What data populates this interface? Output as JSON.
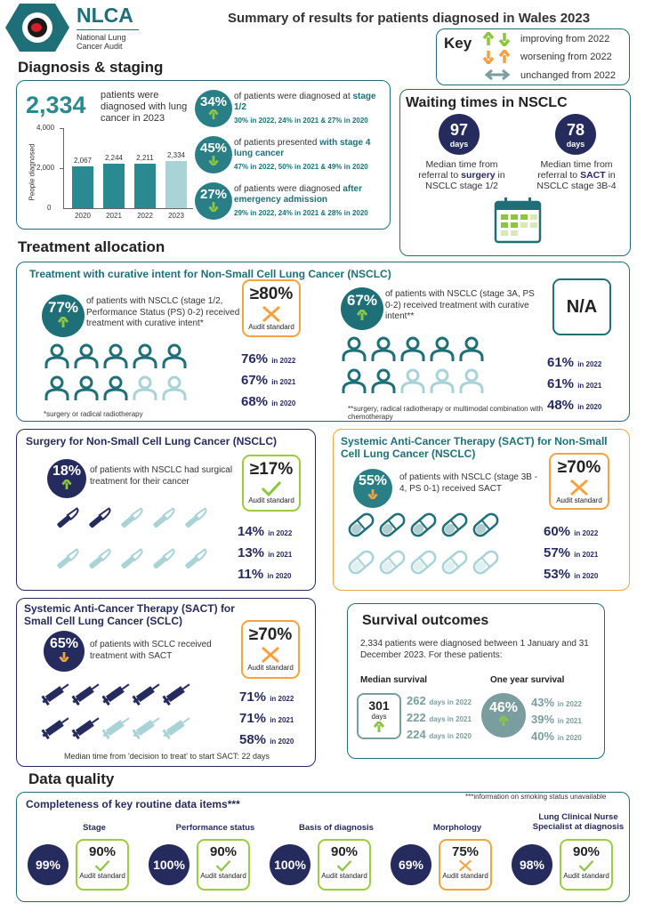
{
  "header": {
    "logo_text": "NLCA",
    "logo_sub1": "National Lung",
    "logo_sub2": "Cancer Audit",
    "title": "Summary of results for patients diagnosed in Wales 2023"
  },
  "key": {
    "title": "Key",
    "improving": "improving from 2022",
    "worsening": "worsening from 2022",
    "unchanged": "unchanged from 2022"
  },
  "diagnosis": {
    "heading": "Diagnosis & staging",
    "count": "2,334",
    "count_text": "patients were diagnosed with lung cancer in 2023",
    "chart_ylabel": "People diagnosed",
    "stats": [
      {
        "pct": "34%",
        "text_a": "of patients were diagnosed at ",
        "text_b": "stage 1/2",
        "hist": "30% in 2022, 24% in 2021 & 27% in 2020"
      },
      {
        "pct": "45%",
        "text_a": "of patients presented ",
        "text_b": "with stage 4 lung cancer",
        "hist": "47% in 2022, 50% in 2021 & 49% in 2020"
      },
      {
        "pct": "27%",
        "text_a": "of patients were diagnosed ",
        "text_b": "after emergency admission",
        "hist": "29% in 2022, 24% in 2021 & 28% in 2020"
      }
    ]
  },
  "chart_data": {
    "type": "bar",
    "categories": [
      "2020",
      "2021",
      "2022",
      "2023"
    ],
    "values": [
      2067,
      2244,
      2211,
      2334
    ],
    "value_labels": [
      "2,067",
      "2,244",
      "2,211",
      "2,334"
    ],
    "ylabel": "People diagnosed",
    "yticks": [
      "4,000",
      "2,000",
      "0"
    ],
    "ylim": [
      0,
      4000
    ]
  },
  "waiting": {
    "heading": "Waiting times in NSCLC",
    "surgery_days": "97",
    "sact_days": "78",
    "days_label": "days",
    "surgery_text_a": "Median time from referral to ",
    "surgery_bold": "surgery",
    "surgery_text_b": " in NSCLC stage 1/2",
    "sact_text_a": "Median time from referral to ",
    "sact_bold": "SACT",
    "sact_text_b": " in NSCLC stage 3B-4"
  },
  "treatment": {
    "heading": "Treatment allocation",
    "curative_title": "Treatment with curative intent for Non-Small Cell Lung Cancer (NSCLC)",
    "left": {
      "pct": "77%",
      "text": "of patients with NSCLC (stage 1/2, Performance Status (PS) 0-2) received treatment with curative intent*",
      "standard": "≥80%",
      "standard_label": "Audit standard",
      "hist": [
        [
          "76%",
          "in 2022"
        ],
        [
          "67%",
          "in 2021"
        ],
        [
          "68%",
          "in 2020"
        ]
      ],
      "footnote": "*surgery or radical radiotherapy"
    },
    "right": {
      "pct": "67%",
      "text": "of patients with NSCLC (stage 3A, PS 0-2) received treatment with curative intent**",
      "standard": "N/A",
      "hist": [
        [
          "61%",
          "in 2022"
        ],
        [
          "61%",
          "in 2021"
        ],
        [
          "48%",
          "in 2020"
        ]
      ],
      "footnote": "**surgery, radical radiotherapy or multimodal combination with chemotherapy"
    }
  },
  "surgery": {
    "title": "Surgery for Non-Small Cell Lung Cancer (NSCLC)",
    "pct": "18%",
    "text": "of patients with NSCLC had surgical treatment for their cancer",
    "standard": "≥17%",
    "standard_label": "Audit standard",
    "hist": [
      [
        "14%",
        "in 2022"
      ],
      [
        "13%",
        "in 2021"
      ],
      [
        "11%",
        "in 2020"
      ]
    ]
  },
  "sact_nsclc": {
    "title": "Systemic Anti-Cancer Therapy (SACT) for Non-Small Cell Lung Cancer (NSCLC)",
    "pct": "55%",
    "text": "of patients with NSCLC (stage 3B - 4, PS 0-1) received  SACT",
    "standard": "≥70%",
    "standard_label": "Audit standard",
    "hist": [
      [
        "60%",
        "in 2022"
      ],
      [
        "57%",
        "in 2021"
      ],
      [
        "53%",
        "in 2020"
      ]
    ]
  },
  "sact_sclc": {
    "title": "Systemic Anti-Cancer Therapy (SACT) for Small Cell Lung Cancer (SCLC)",
    "pct": "65%",
    "text": "of patients with SCLC received treatment with SACT",
    "standard": "≥70%",
    "standard_label": "Audit standard",
    "hist": [
      [
        "71%",
        "in 2022"
      ],
      [
        "71%",
        "in 2021"
      ],
      [
        "58%",
        "in 2020"
      ]
    ],
    "footer": "Median time from 'decision to treat' to start SACT: 22 days"
  },
  "survival": {
    "title": "Survival outcomes",
    "text": "2,334 patients were diagnosed between 1 January and 31 December 2023. For these patients:",
    "median_title": "Median survival",
    "median_value": "301",
    "median_unit": "days",
    "median_hist": [
      [
        "262",
        "days in 2022"
      ],
      [
        "222",
        "days in 2021"
      ],
      [
        "224",
        "days in 2020"
      ]
    ],
    "year_title": "One year survival",
    "year_value": "46%",
    "year_hist": [
      [
        "43%",
        "in 2022"
      ],
      [
        "39%",
        "in 2021"
      ],
      [
        "40%",
        "in 2020"
      ]
    ]
  },
  "quality": {
    "heading": "Data quality",
    "title": "Completeness of key routine data items***",
    "note": "***information on smoking status unavailable",
    "items": [
      {
        "label": "Stage",
        "value": "99%",
        "standard": "90%",
        "standard_label": "Audit standard"
      },
      {
        "label": "Performance status",
        "value": "100%",
        "standard": "90%",
        "standard_label": "Audit standard"
      },
      {
        "label": "Basis of diagnosis",
        "value": "100%",
        "standard": "90%",
        "standard_label": "Audit standard"
      },
      {
        "label": "Morphology",
        "value": "69%",
        "standard": "75%",
        "standard_label": "Audit standard"
      },
      {
        "label": "Lung Clinical Nurse Specialist at diagnosis",
        "value": "98%",
        "standard": "90%",
        "standard_label": "Audit standard"
      }
    ]
  },
  "colors": {
    "teal": "#1f6f78",
    "navy": "#262b5e",
    "orange": "#f4a340",
    "green": "#8cc63f",
    "grey": "#7a9e9f"
  }
}
